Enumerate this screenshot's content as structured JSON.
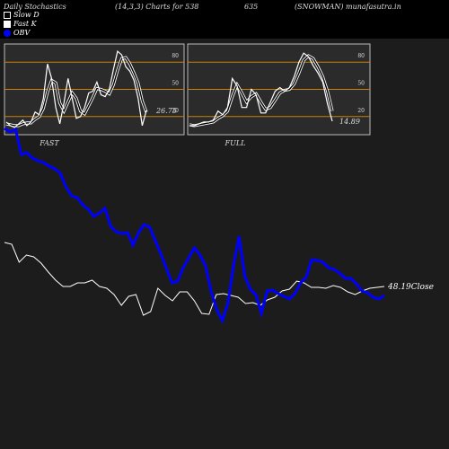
{
  "header": {
    "title": "Daily Stochastics",
    "params": "(14,3,3) Charts for 538",
    "code": "635",
    "symbol": "(SNOWMAN) munafasutra.in"
  },
  "legend": [
    {
      "label": "Slow  D",
      "color": "#000000"
    },
    {
      "label": "Fast K",
      "color": "#ffffff"
    },
    {
      "label": "OBV",
      "color": "#0000ff"
    }
  ],
  "colors": {
    "background": "#1c1c1c",
    "panel": "#2b2b2b",
    "level_line": "#c8820a",
    "obv": "#0000ff",
    "price": "#ffffff"
  },
  "chart_data": [
    {
      "type": "line",
      "title": "FAST",
      "yticks": [
        20,
        50,
        80
      ],
      "ylim": [
        0,
        100
      ],
      "last_value_label": "26.75",
      "series": [
        {
          "name": "Fast K",
          "values": [
            14,
            10,
            8,
            12,
            16,
            10,
            14,
            25,
            22,
            40,
            78,
            62,
            30,
            12,
            35,
            62,
            40,
            18,
            20,
            30,
            46,
            48,
            58,
            44,
            42,
            50,
            72,
            92,
            88,
            75,
            70,
            60,
            40,
            10,
            26.75
          ]
        },
        {
          "name": "Slow D",
          "values": [
            12,
            11,
            10,
            10,
            12,
            13,
            13,
            17,
            20,
            29,
            47,
            60,
            57,
            35,
            26,
            36,
            46,
            40,
            26,
            23,
            32,
            41,
            51,
            50,
            48,
            45,
            55,
            71,
            84,
            85,
            78,
            68,
            57,
            37,
            25
          ]
        }
      ]
    },
    {
      "type": "line",
      "title": "FULL",
      "yticks": [
        20,
        50,
        80
      ],
      "ylim": [
        0,
        100
      ],
      "last_value_label": "14.89",
      "series": [
        {
          "name": "Fast K",
          "values": [
            10,
            10,
            12,
            14,
            14,
            16,
            26,
            22,
            30,
            62,
            54,
            30,
            30,
            50,
            44,
            24,
            24,
            36,
            48,
            52,
            48,
            52,
            64,
            80,
            90,
            86,
            76,
            68,
            58,
            34,
            14.89
          ]
        },
        {
          "name": "Slow D",
          "values": [
            11,
            10,
            11,
            12,
            13,
            14,
            18,
            21,
            26,
            42,
            55,
            46,
            36,
            42,
            45,
            36,
            28,
            30,
            38,
            46,
            49,
            50,
            56,
            68,
            82,
            87,
            84,
            75,
            64,
            48,
            26
          ]
        }
      ]
    },
    {
      "type": "line",
      "title": "",
      "last_value_label": "48.19Close",
      "series": [
        {
          "name": "OBV",
          "values": [
            112,
            108,
            111,
            83,
            85,
            79,
            76,
            74,
            70,
            67,
            62,
            47,
            37,
            35,
            27,
            22,
            14,
            18,
            23,
            3,
            -3,
            -5,
            -4,
            -18,
            -4,
            5,
            2,
            -13,
            -28,
            -44,
            -60,
            -58,
            -43,
            -32,
            -21,
            -29,
            -41,
            -70,
            -90,
            -102,
            -83,
            -41,
            -8,
            -52,
            -67,
            -73,
            -94,
            -69,
            -68,
            -72,
            -75,
            -78,
            -72,
            -60,
            -54,
            -34,
            -35,
            -37,
            -43,
            -45,
            -49,
            -55,
            -55,
            -61,
            -69,
            -71,
            -76,
            -78,
            -74
          ]
        },
        {
          "name": "Price",
          "values": [
            -15,
            -17,
            -37,
            -29,
            -31,
            -38,
            -48,
            -57,
            -64,
            -64,
            -60,
            -60,
            -57,
            -64,
            -66,
            -73,
            -85,
            -75,
            -73,
            -96,
            -92,
            -66,
            -74,
            -80,
            -70,
            -70,
            -80,
            -94,
            -95,
            -73,
            -72,
            -74,
            -76,
            -83,
            -82,
            -85,
            -79,
            -76,
            -69,
            -67,
            -58,
            -60,
            -65,
            -65,
            -66,
            -63,
            -65,
            -70,
            -73,
            -69,
            -66,
            -65,
            -64
          ]
        }
      ]
    }
  ]
}
